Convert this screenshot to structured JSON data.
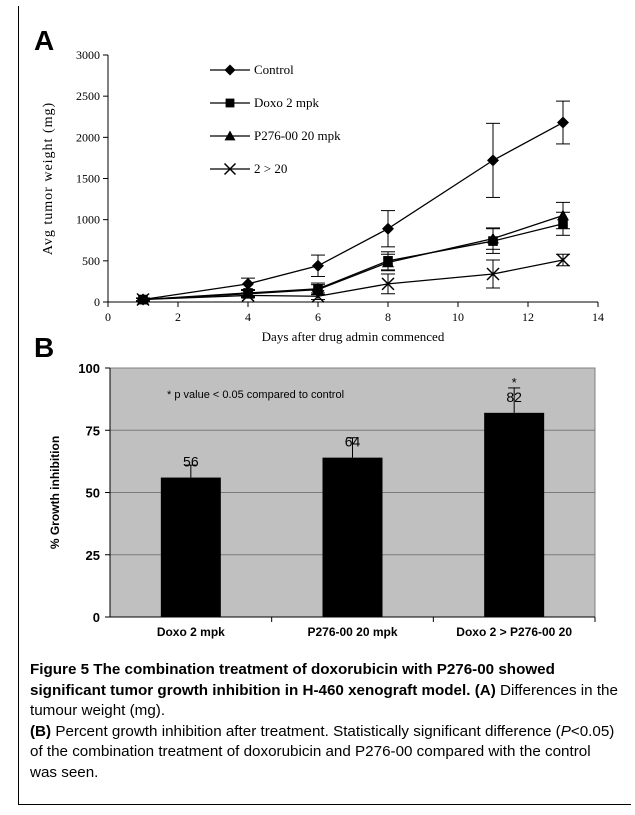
{
  "chart_data": [
    {
      "panel": "A",
      "type": "line",
      "xlabel": "Days after drug admin commenced",
      "ylabel": "Avg tumor weight (mg)",
      "xlim": [
        0,
        14
      ],
      "ylim": [
        0,
        3000
      ],
      "x_ticks": [
        "0",
        "2",
        "4",
        "6",
        "8",
        "10",
        "12",
        "14"
      ],
      "y_ticks": [
        "0",
        "500",
        "1000",
        "1500",
        "2000",
        "2500",
        "3000"
      ],
      "legend_position": "top-left",
      "grid": false,
      "series": [
        {
          "name": "Control",
          "marker": "diamond",
          "x": [
            1,
            4,
            6,
            8,
            11,
            13
          ],
          "y": [
            30,
            220,
            440,
            890,
            1720,
            2180
          ],
          "err": [
            20,
            70,
            130,
            220,
            450,
            260
          ]
        },
        {
          "name": "Doxo 2 mpk",
          "marker": "square",
          "x": [
            1,
            4,
            6,
            8,
            11,
            13
          ],
          "y": [
            30,
            110,
            160,
            500,
            740,
            950
          ],
          "err": [
            15,
            40,
            70,
            110,
            150,
            140
          ]
        },
        {
          "name": "P276-00 20 mpk",
          "marker": "triangle",
          "x": [
            1,
            4,
            6,
            8,
            11,
            13
          ],
          "y": [
            30,
            100,
            150,
            480,
            770,
            1050
          ],
          "err": [
            15,
            40,
            60,
            100,
            130,
            160
          ]
        },
        {
          "name": "2 > 20",
          "marker": "x",
          "x": [
            1,
            4,
            6,
            8,
            11,
            13
          ],
          "y": [
            30,
            80,
            70,
            220,
            340,
            510
          ],
          "err": [
            15,
            30,
            40,
            120,
            170,
            70
          ]
        }
      ]
    },
    {
      "panel": "B",
      "type": "bar",
      "ylabel": "% Growth inhibition",
      "ylim": [
        0,
        100
      ],
      "y_ticks": [
        "0",
        "25",
        "50",
        "75",
        "100"
      ],
      "grid": true,
      "background": "#c0c0c0",
      "categories": [
        "Doxo 2 mpk",
        "P276-00 20 mpk",
        "Doxo 2 > P276-00 20"
      ],
      "values": [
        56,
        64,
        82
      ],
      "data_labels": [
        "56",
        "64",
        "82"
      ],
      "errors": [
        5,
        8,
        10
      ],
      "significance": [
        "",
        "",
        "*"
      ],
      "annotation": "* p value < 0.05 compared to control"
    }
  ],
  "colors": {
    "line": "#000000",
    "bar": "#000000",
    "plot_bg": "#c0c0c0"
  },
  "caption": {
    "title": "Figure 5 The combination treatment of doxorubicin with P276-00 showed significant tumor growth inhibition in H-460 xenograft model.",
    "partA_label": "(A)",
    "partA_text": "Differences in the tumour weight (mg).",
    "partB_label": "(B)",
    "partB_text": "Percent growth inhibition after treatment. Statistically significant difference (",
    "p_symbol": "P",
    "partB_text2": "<0.05) of the combination treatment of doxorubicin and P276-00 compared with the control was seen."
  }
}
